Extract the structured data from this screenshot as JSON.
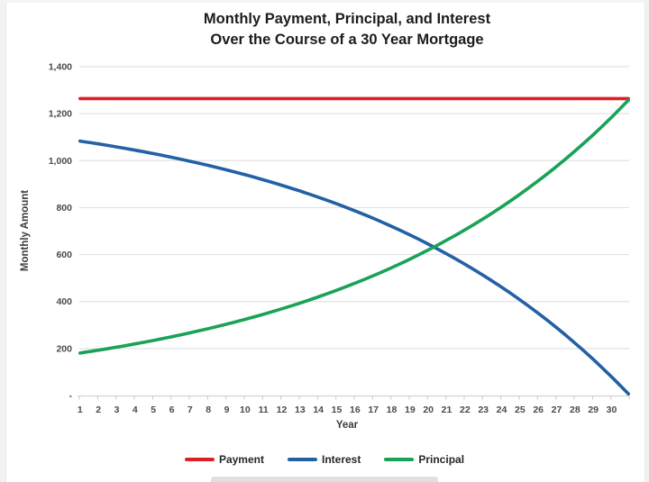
{
  "chart_data": {
    "type": "line",
    "title_line1": "Monthly Payment, Principal, and Interest",
    "title_line2": "Over the Course of a 30 Year Mortgage",
    "xlabel": "Year",
    "ylabel": "Monthly Amount",
    "x_tick_labels": [
      "1",
      "2",
      "3",
      "4",
      "5",
      "6",
      "7",
      "8",
      "9",
      "10",
      "11",
      "12",
      "13",
      "14",
      "15",
      "16",
      "17",
      "18",
      "19",
      "20",
      "21",
      "22",
      "23",
      "24",
      "25",
      "26",
      "27",
      "28",
      "29",
      "30"
    ],
    "y_ticks": [
      {
        "label": "1,400",
        "value": 1400
      },
      {
        "label": "1,200",
        "value": 1200
      },
      {
        "label": "1,000",
        "value": 1000
      },
      {
        "label": "800",
        "value": 800
      },
      {
        "label": "600",
        "value": 600
      },
      {
        "label": "400",
        "value": 400
      },
      {
        "label": "200",
        "value": 200
      },
      {
        "label": "-",
        "value": 0
      }
    ],
    "ylim": [
      0,
      1400
    ],
    "grid": true,
    "legend_position": "bottom",
    "months_total": 360,
    "x_months": [
      1,
      13,
      25,
      37,
      49,
      61,
      73,
      85,
      97,
      109,
      121,
      133,
      145,
      157,
      169,
      181,
      193,
      205,
      217,
      229,
      241,
      253,
      265,
      277,
      289,
      301,
      313,
      325,
      337,
      349,
      360
    ],
    "series": [
      {
        "name": "Payment",
        "color": "#dd2026",
        "values": [
          1264.14,
          1264.14,
          1264.14,
          1264.14,
          1264.14,
          1264.14,
          1264.14,
          1264.14,
          1264.14,
          1264.14,
          1264.14,
          1264.14,
          1264.14,
          1264.14,
          1264.14,
          1264.14,
          1264.14,
          1264.14,
          1264.14,
          1264.14,
          1264.14,
          1264.14,
          1264.14,
          1264.14,
          1264.14,
          1264.14,
          1264.14,
          1264.14,
          1264.14,
          1264.14,
          1264.14
        ]
      },
      {
        "name": "Interest",
        "color": "#2360a5",
        "values": [
          1083.33,
          1071.23,
          1058.3,
          1044.52,
          1029.81,
          1014.11,
          997.37,
          979.5,
          960.44,
          940.1,
          918.4,
          895.24,
          870.53,
          844.17,
          816.04,
          786.03,
          754.01,
          719.85,
          683.39,
          644.49,
          602.99,
          558.71,
          511.47,
          461.06,
          407.27,
          349.89,
          288.65,
          223.32,
          153.62,
          79.24,
          6.82
        ]
      },
      {
        "name": "Principal",
        "color": "#1aa257",
        "values": [
          180.8,
          192.91,
          205.84,
          219.62,
          234.33,
          250.03,
          266.77,
          284.64,
          303.7,
          324.04,
          345.74,
          368.9,
          393.61,
          419.97,
          448.1,
          478.11,
          510.13,
          544.29,
          580.75,
          619.65,
          661.15,
          705.43,
          752.67,
          803.08,
          856.87,
          914.25,
          975.49,
          1040.82,
          1110.52,
          1184.9,
          1257.32
        ]
      }
    ]
  },
  "colors": {
    "grid": "#e3e3e3",
    "axis": "#d4d4d4",
    "tick": "#c9c9c9",
    "tick_text": "#4a4a4a",
    "title_text": "#1c1c1c",
    "axis_title_text": "#3a3a3a",
    "legend_text": "#262626"
  }
}
